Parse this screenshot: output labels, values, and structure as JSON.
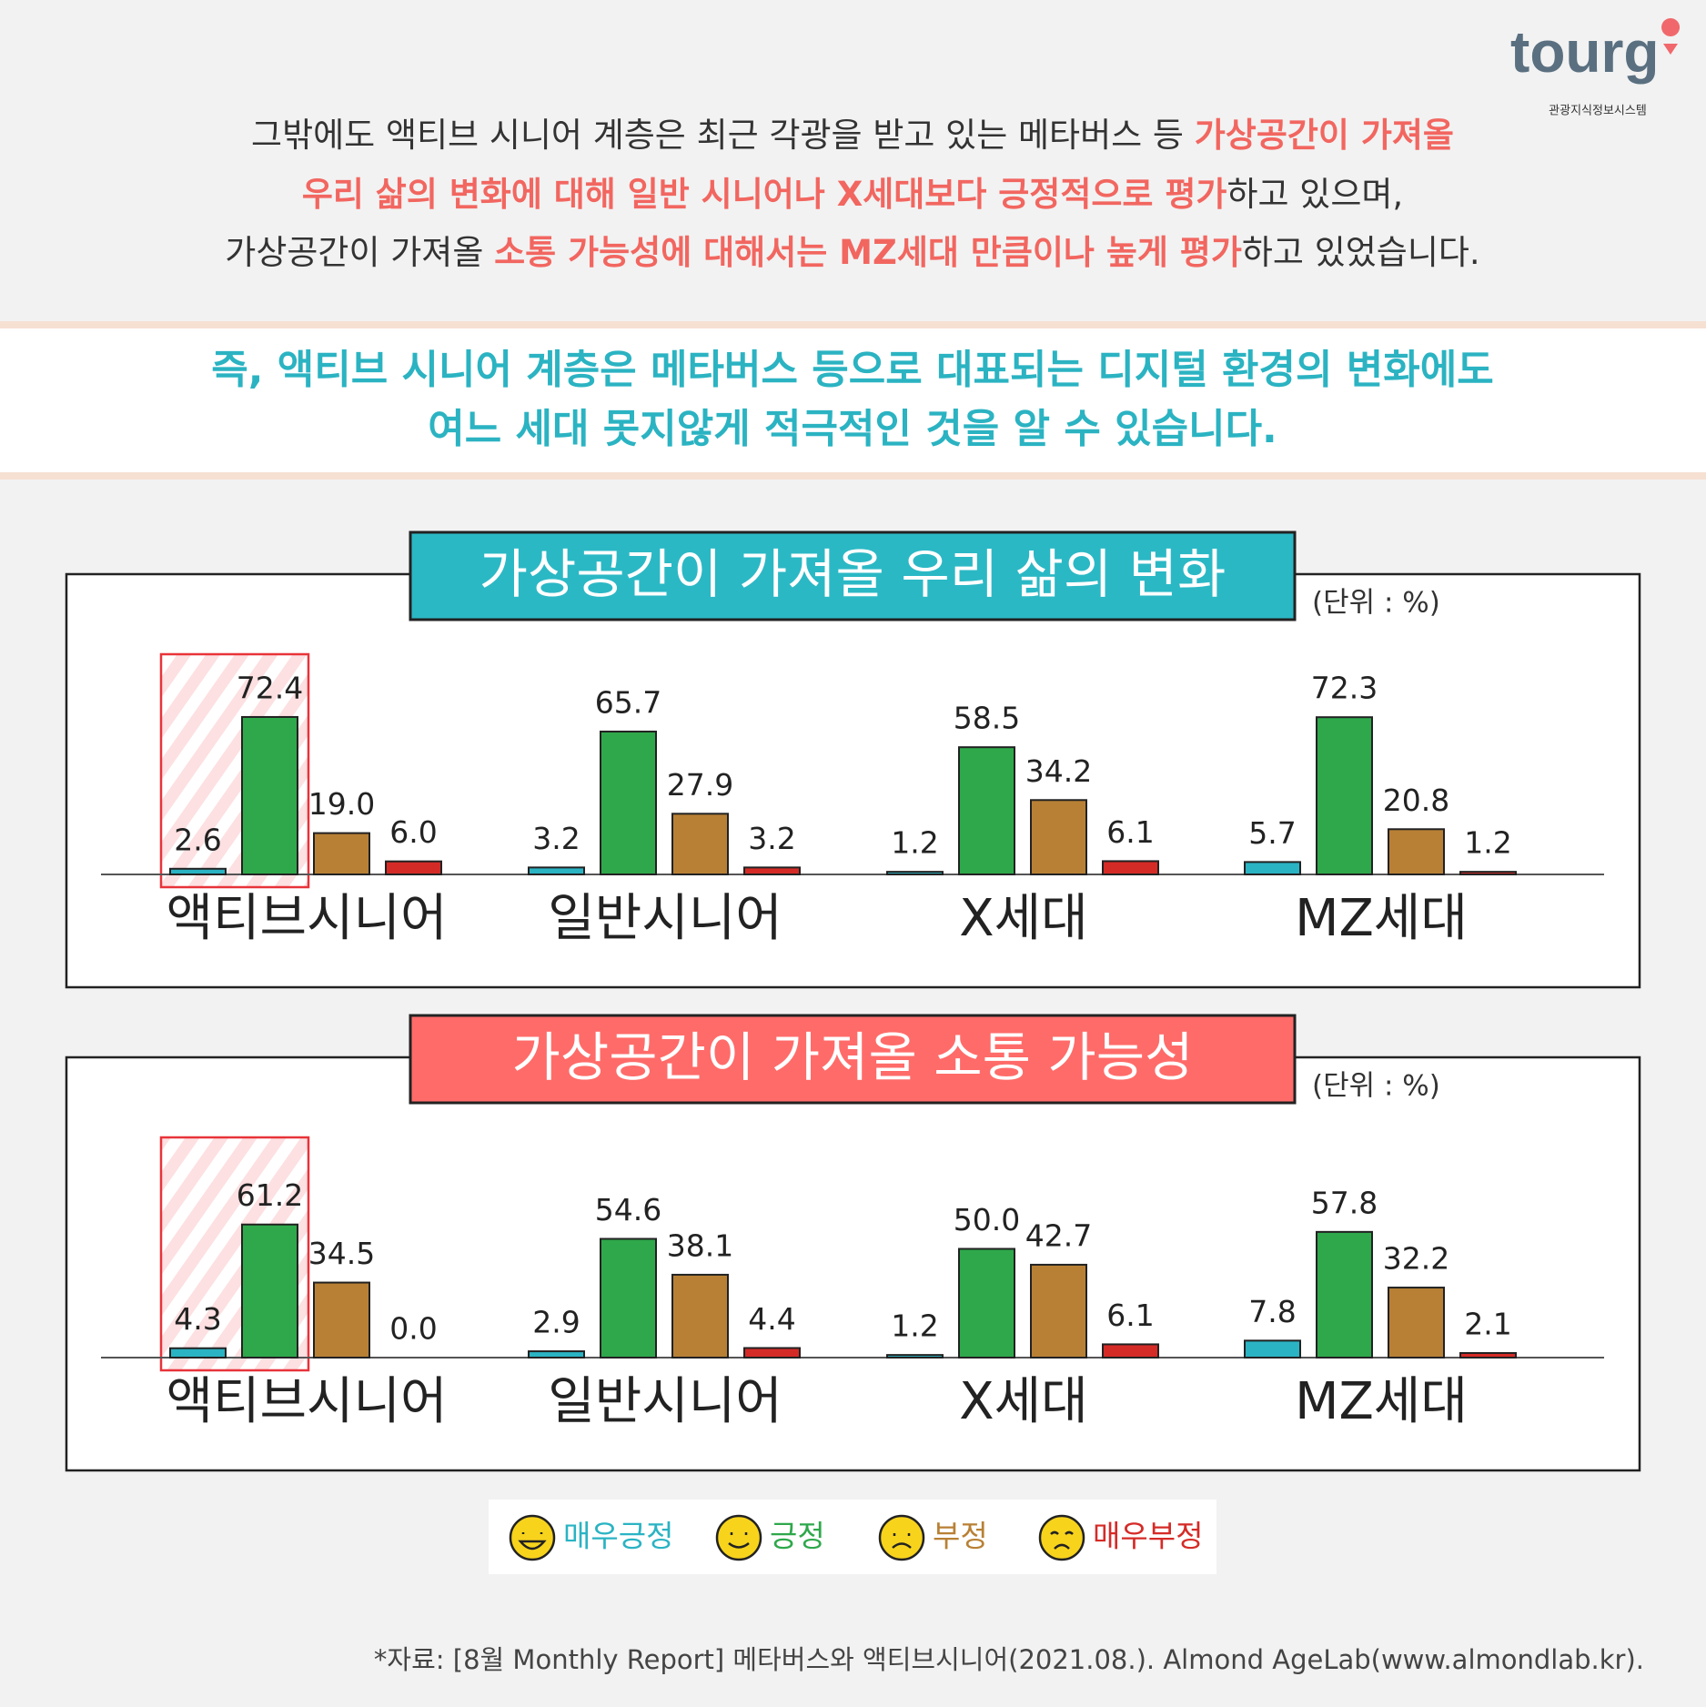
{
  "logo": {
    "text": "tourg",
    "subtitle": "관광지식정보시스템"
  },
  "intro": [
    [
      {
        "text": "그밖에도 액티브 시니어 계층은 최근 각광을 받고 있는 메타버스 등 ",
        "highlight": false
      },
      {
        "text": "가상공간이 가져올",
        "highlight": true
      }
    ],
    [
      {
        "text": "우리 삶의 변화에 대해 일반 시니어나 X세대보다 긍정적으로 평가",
        "highlight": true
      },
      {
        "text": "하고 있으며,",
        "highlight": false
      }
    ],
    [
      {
        "text": "가상공간이 가져올 ",
        "highlight": false
      },
      {
        "text": "소통 가능성에 대해서는 MZ세대 만큼이나 높게 평가",
        "highlight": true
      },
      {
        "text": "하고 있었습니다.",
        "highlight": false
      }
    ]
  ],
  "conclusion": [
    "즉, 액티브 시니어 계층은 메타버스 등으로 대표되는 디지털 환경의 변화에도",
    "여느 세대 못지않게 적극적인 것을 알 수 있습니다."
  ],
  "chart_data": [
    {
      "type": "bar",
      "title": "가상공간이 가져올 우리 삶의 변화",
      "title_color": "#2bb8c5",
      "unit_label": "(단위 : %)",
      "categories": [
        "액티브시니어",
        "일반시니어",
        "X세대",
        "MZ세대"
      ],
      "series": [
        {
          "name": "매우긍정",
          "color": "#2ab3c3",
          "values": [
            2.6,
            3.2,
            1.2,
            5.7
          ],
          "value_labels": [
            "2.6",
            "3.2",
            "1.2",
            "5.7"
          ]
        },
        {
          "name": "긍정",
          "color": "#2ea84b",
          "values": [
            72.4,
            65.7,
            58.5,
            72.3
          ],
          "value_labels": [
            "72.4",
            "65.7",
            "58.5",
            "72.3"
          ]
        },
        {
          "name": "부정",
          "color": "#b88035",
          "values": [
            19.0,
            27.9,
            34.2,
            20.8
          ],
          "value_labels": [
            "19.0",
            "27.9",
            "34.2",
            "20.8"
          ]
        },
        {
          "name": "매우부정",
          "color": "#d52b27",
          "values": [
            6.0,
            3.2,
            6.1,
            1.2
          ],
          "value_labels": [
            "6.0",
            "3.2",
            "6.1",
            "1.2"
          ]
        }
      ]
    },
    {
      "type": "bar",
      "title": "가상공간이 가져올 소통 가능성",
      "title_color": "#ff6b69",
      "unit_label": "(단위 : %)",
      "categories": [
        "액티브시니어",
        "일반시니어",
        "X세대",
        "MZ세대"
      ],
      "series": [
        {
          "name": "매우긍정",
          "color": "#2ab3c3",
          "values": [
            4.3,
            2.9,
            1.2,
            7.8
          ],
          "value_labels": [
            "4.3",
            "2.9",
            "1.2",
            "7.8"
          ]
        },
        {
          "name": "긍정",
          "color": "#2ea84b",
          "values": [
            61.2,
            54.6,
            50.0,
            57.8
          ],
          "value_labels": [
            "61.2",
            "54.6",
            "50.0",
            "57.8"
          ]
        },
        {
          "name": "부정",
          "color": "#b88035",
          "values": [
            34.5,
            38.1,
            42.7,
            32.2
          ],
          "value_labels": [
            "34.5",
            "38.1",
            "42.7",
            "32.2"
          ]
        },
        {
          "name": "매우부정",
          "color": "#d52b27",
          "values": [
            0.0,
            4.4,
            6.1,
            2.1
          ],
          "value_labels": [
            "0.0",
            "4.4",
            "6.1",
            "2.1"
          ]
        }
      ]
    }
  ],
  "source": "*자료: [8월 Monthly Report] 메타버스와 액티브시니어(2021.08.). Almond AgeLab(www.almondlab.kr)."
}
